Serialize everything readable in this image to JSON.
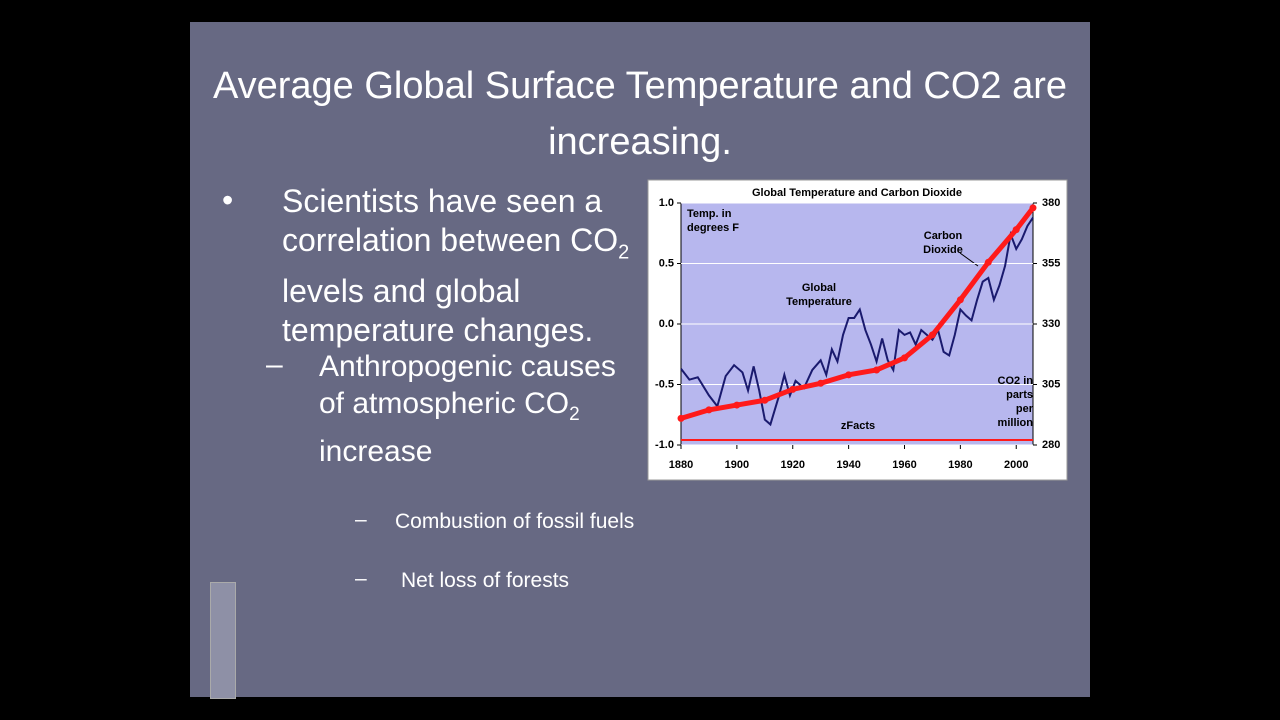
{
  "slide": {
    "title": "Average Global Surface Temperature and CO2 are increasing.",
    "bullets": [
      {
        "marker": "•",
        "before": "Scientists have seen a correlation between CO",
        "sub": "2",
        "after": " levels and global temperature changes."
      },
      {
        "marker": "–",
        "before": "Anthropogenic causes of atmospheric CO",
        "sub": "2",
        "after": " increase"
      }
    ],
    "sub_bullets": [
      {
        "marker": "–",
        "text": "Combustion of fossil fuels"
      },
      {
        "marker": "–",
        "text": "Net loss of forests"
      }
    ]
  },
  "chart_data": {
    "type": "line",
    "title": "Global Temperature and Carbon Dioxide",
    "y_label": "Temp. in degrees F",
    "y2_label": "CO2 in parts per million",
    "source": "zFacts",
    "xlim": [
      1880,
      2006
    ],
    "xticks": [
      1880,
      1900,
      1920,
      1940,
      1960,
      1980,
      2000
    ],
    "ylim": [
      -1,
      1
    ],
    "yticks": [
      {
        "value": 1,
        "label": "1.0"
      },
      0.5,
      {
        "value": 0,
        "label": "0.0"
      },
      -0.5,
      {
        "value": -1,
        "label": "-1.0"
      }
    ],
    "y2lim": [
      280,
      380
    ],
    "y2ticks": [
      280,
      305,
      330,
      355,
      380
    ],
    "grid": true,
    "series": [
      {
        "name": "Global Temperature",
        "color": "#1a1a6e",
        "x": [
          1880,
          1883,
          1886,
          1890,
          1893,
          1896,
          1899,
          1902,
          1904,
          1906,
          1908,
          1910,
          1912,
          1915,
          1917,
          1919,
          1921,
          1924,
          1927,
          1930,
          1932,
          1934,
          1936,
          1938,
          1940,
          1942,
          1944,
          1946,
          1948,
          1950,
          1952,
          1954,
          1956,
          1958,
          1960,
          1962,
          1964,
          1966,
          1968,
          1970,
          1972,
          1974,
          1976,
          1978,
          1980,
          1982,
          1984,
          1986,
          1988,
          1990,
          1992,
          1994,
          1996,
          1998,
          2000,
          2002,
          2004,
          2006
        ],
        "values": [
          -0.37,
          -0.46,
          -0.44,
          -0.59,
          -0.68,
          -0.43,
          -0.34,
          -0.4,
          -0.55,
          -0.35,
          -0.55,
          -0.79,
          -0.83,
          -0.6,
          -0.42,
          -0.59,
          -0.47,
          -0.53,
          -0.38,
          -0.3,
          -0.42,
          -0.21,
          -0.31,
          -0.09,
          0.05,
          0.05,
          0.12,
          -0.05,
          -0.17,
          -0.31,
          -0.12,
          -0.3,
          -0.38,
          -0.05,
          -0.09,
          -0.07,
          -0.17,
          -0.05,
          -0.09,
          -0.13,
          -0.05,
          -0.23,
          -0.26,
          -0.09,
          0.12,
          0.07,
          0.03,
          0.2,
          0.35,
          0.38,
          0.2,
          0.32,
          0.48,
          0.74,
          0.62,
          0.7,
          0.81,
          0.88
        ]
      },
      {
        "name": "Carbon Dioxide",
        "color": "#ff1a1a",
        "axis": "y2",
        "x": [
          1880,
          1890,
          1900,
          1910,
          1920,
          1930,
          1940,
          1950,
          1960,
          1970,
          1980,
          1990,
          2000,
          2006
        ],
        "values": [
          291,
          294.5,
          296.5,
          298.5,
          303,
          305.5,
          309,
          311,
          316,
          325.5,
          340,
          355.5,
          369,
          378
        ]
      }
    ]
  }
}
